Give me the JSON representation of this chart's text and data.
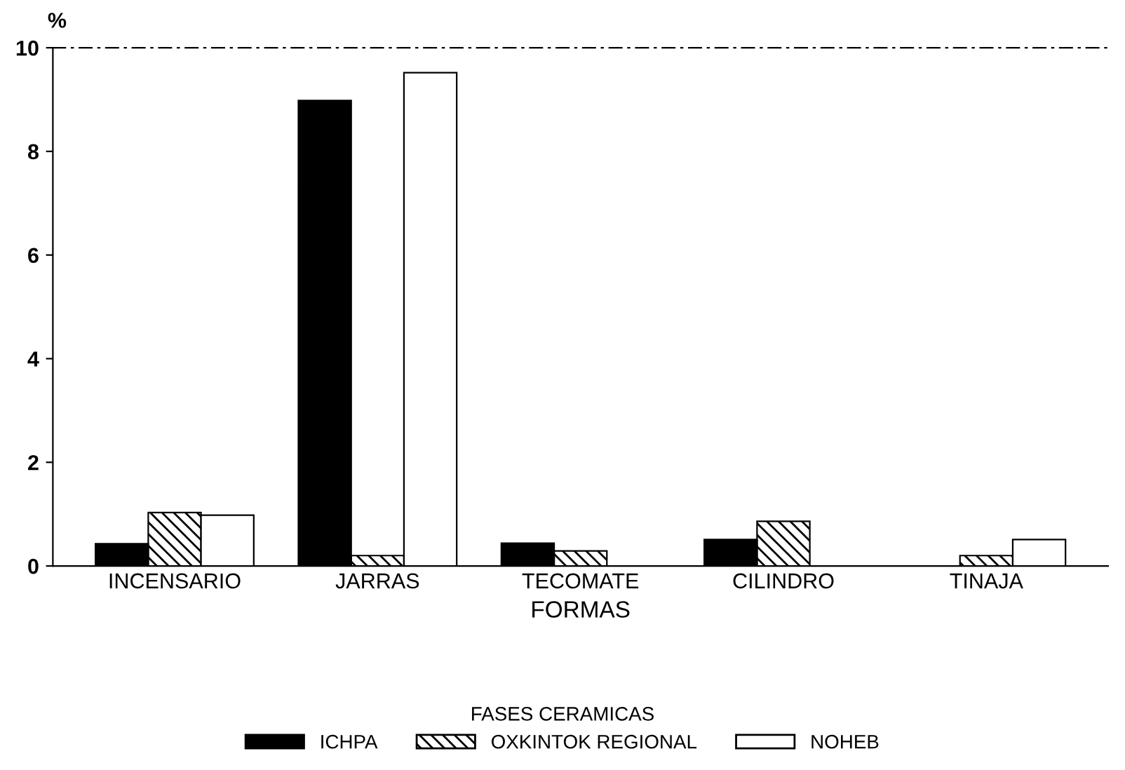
{
  "chart_data": {
    "type": "bar",
    "ylabel": "%",
    "xlabel": "FORMAS",
    "legend_title": "FASES CERAMICAS",
    "categories": [
      "INCENSARIO",
      "JARRAS",
      "TECOMATE",
      "CILINDRO",
      "TINAJA"
    ],
    "series": [
      {
        "name": "ICHPA",
        "color": "#000000",
        "values": [
          0.43,
          8.98,
          0.44,
          0.51,
          0
        ]
      },
      {
        "name": "OXKINTOK REGIONAL",
        "color": "#000000",
        "values": [
          1.03,
          0.2,
          0.29,
          0.86,
          0.2
        ]
      },
      {
        "name": "NOHEB",
        "color": "#ffffff",
        "values": [
          0.98,
          9.52,
          0,
          0,
          0.51
        ]
      }
    ],
    "ylim": [
      0,
      10
    ],
    "yticks": [
      0,
      2,
      4,
      6,
      8,
      10
    ],
    "grid": false,
    "legend": "bottom"
  }
}
